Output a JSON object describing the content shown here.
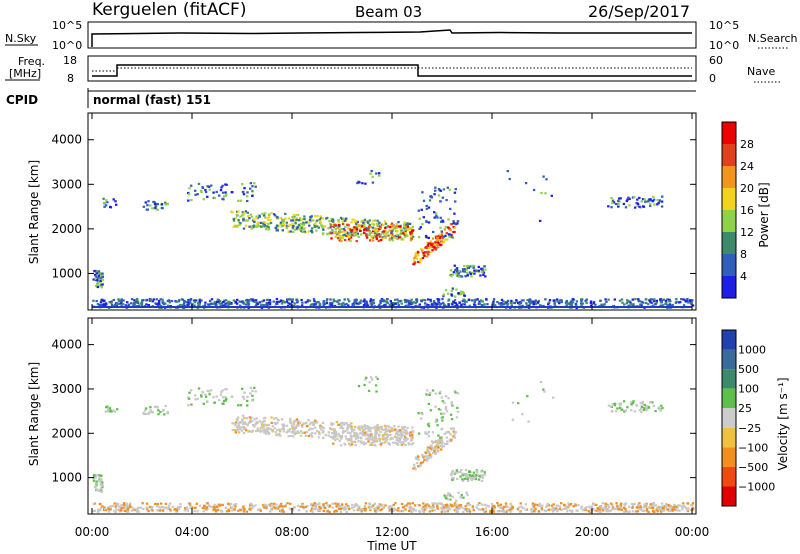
{
  "header": {
    "station": "Kerguelen (fitACF)",
    "beam": "Beam 03",
    "date": "26/Sep/2017"
  },
  "noise_panel": {
    "left_label": "N.Sky",
    "left_ticks": [
      "10^5",
      "10^0"
    ],
    "right_label": "N.Search",
    "right_ticks": [
      "10^5",
      "10^0"
    ]
  },
  "freq_panel": {
    "left_label_1": "Freq.",
    "left_label_2": "[MHz]",
    "left_ticks": [
      "18",
      "8"
    ],
    "right_label": "Nave",
    "right_ticks": [
      "60",
      "0"
    ]
  },
  "cpid_panel": {
    "label": "CPID",
    "mode_text": "normal (fast) 151"
  },
  "x_axis": {
    "ticks": [
      "00:00",
      "04:00",
      "08:00",
      "12:00",
      "16:00",
      "20:00",
      "00:00"
    ],
    "label": "Time UT"
  },
  "chart_data": [
    {
      "type": "heatmap",
      "name": "power",
      "ylabel": "Slant Range [km]",
      "yticks": [
        "1000",
        "2000",
        "3000",
        "4000"
      ],
      "ylim": [
        180,
        4600
      ],
      "xlim_hours": [
        0,
        24
      ],
      "colorbar_label": "Power [dB]",
      "colorbar_ticks": [
        "4",
        "8",
        "12",
        "16",
        "20",
        "24",
        "28"
      ],
      "colorbar_colors": [
        "#1e1ee6",
        "#2f5fb8",
        "#3c8a6a",
        "#8fd14a",
        "#f0d31a",
        "#f0961e",
        "#e0401a",
        "#ee0000"
      ]
    },
    {
      "type": "heatmap",
      "name": "velocity",
      "ylabel": "Slant Range [km]",
      "yticks": [
        "1000",
        "2000",
        "3000",
        "4000"
      ],
      "ylim": [
        180,
        4600
      ],
      "xlim_hours": [
        0,
        24
      ],
      "colorbar_label": "Velocity [m s⁻¹]",
      "colorbar_ticks": [
        "1000",
        "500",
        "100",
        "25",
        "−25",
        "−100",
        "−500",
        "−1000"
      ],
      "colorbar_colors": [
        "#2040b0",
        "#3a6a9a",
        "#3c8a6a",
        "#5ec04a",
        "#cccccc",
        "#f0c040",
        "#f09020",
        "#f04a10",
        "#e00000"
      ]
    }
  ],
  "colors": {
    "ground_scatter": "#c8c8c8"
  }
}
